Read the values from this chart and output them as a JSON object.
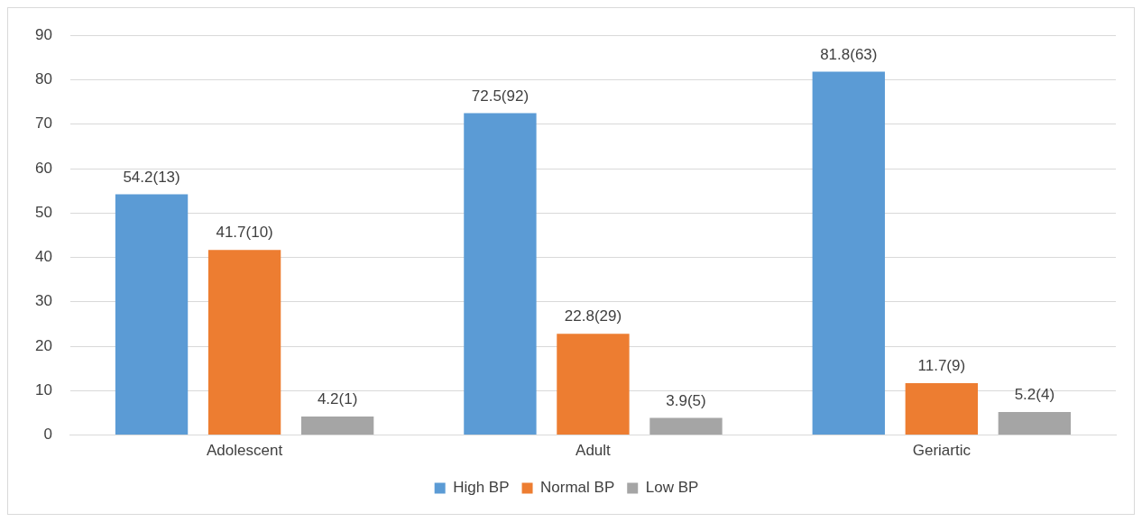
{
  "chart_data": {
    "type": "bar",
    "categories": [
      "Adolescent",
      "Adult",
      "Geriartic"
    ],
    "series": [
      {
        "name": "High BP",
        "color": "#5b9bd5",
        "values": [
          54.2,
          72.5,
          81.8
        ],
        "value_labels": [
          "54.2(13)",
          "72.5(92)",
          "81.8(63)"
        ]
      },
      {
        "name": "Normal BP",
        "color": "#ed7d31",
        "values": [
          41.7,
          22.8,
          11.7
        ],
        "value_labels": [
          "41.7(10)",
          "22.8(29)",
          "11.7(9)"
        ]
      },
      {
        "name": "Low BP",
        "color": "#a5a5a5",
        "values": [
          4.2,
          3.9,
          5.2
        ],
        "value_labels": [
          "4.2(1)",
          "3.9(5)",
          "5.2(4)"
        ]
      }
    ],
    "ylim": [
      0,
      90
    ],
    "yticks": [
      0,
      10,
      20,
      30,
      40,
      50,
      60,
      70,
      80,
      90
    ],
    "grid": "y",
    "legend": "bottom"
  }
}
